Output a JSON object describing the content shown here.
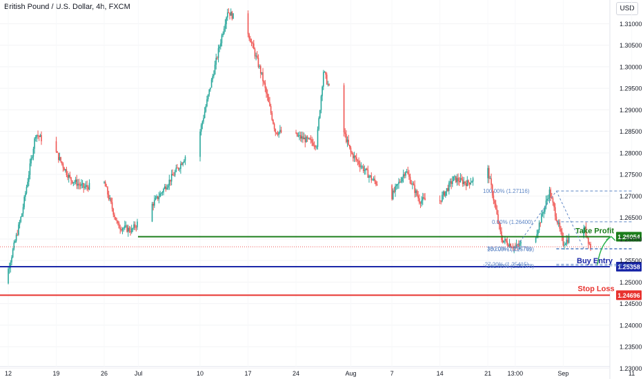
{
  "header": {
    "title": "British Pound / U.S. Dollar, 4h, FXCM",
    "currency": "USD"
  },
  "colors": {
    "up": "#26a69a",
    "down": "#ef5350",
    "take_profit": "#1b7d1b",
    "buy_entry": "#1a27a8",
    "stop_loss": "#e8322e",
    "fib": "#5b84c4"
  },
  "chart_data": {
    "type": "candlestick",
    "title": "British Pound / U.S. Dollar, 4h, FXCM",
    "ylim": [
      1.2275,
      1.3155
    ],
    "y_ticks": [
      "1.31000",
      "1.30500",
      "1.30000",
      "1.29500",
      "1.29000",
      "1.28500",
      "1.28000",
      "1.27500",
      "1.27000",
      "1.26500",
      "1.26000",
      "1.25500",
      "1.25000",
      "1.24500",
      "1.24000",
      "1.23500",
      "1.23000"
    ],
    "x_ticks": [
      {
        "label": "12",
        "date": "2023-06-12"
      },
      {
        "label": "19",
        "date": "2023-06-19"
      },
      {
        "label": "26",
        "date": "2023-06-26"
      },
      {
        "label": "Jul",
        "date": "2023-07-01"
      },
      {
        "label": "10",
        "date": "2023-07-10"
      },
      {
        "label": "17",
        "date": "2023-07-17"
      },
      {
        "label": "24",
        "date": "2023-07-24"
      },
      {
        "label": "Aug",
        "date": "2023-08-01"
      },
      {
        "label": "7",
        "date": "2023-08-07"
      },
      {
        "label": "14",
        "date": "2023-08-14"
      },
      {
        "label": "21",
        "date": "2023-08-21"
      },
      {
        "label": "13:00",
        "date": "2023-08-25"
      },
      {
        "label": "Sep",
        "date": "2023-09-01"
      },
      {
        "label": "11",
        "date": "2023-09-11"
      }
    ],
    "price_path": [
      {
        "date": "2023-06-09",
        "close": 1.249
      },
      {
        "date": "2023-06-12",
        "close": 1.253
      },
      {
        "date": "2023-06-14",
        "close": 1.266
      },
      {
        "date": "2023-06-16",
        "close": 1.2845
      },
      {
        "date": "2023-06-19",
        "close": 1.28
      },
      {
        "date": "2023-06-21",
        "close": 1.274
      },
      {
        "date": "2023-06-23",
        "close": 1.272
      },
      {
        "date": "2023-06-26",
        "close": 1.273
      },
      {
        "date": "2023-06-28",
        "close": 1.263
      },
      {
        "date": "2023-06-30",
        "close": 1.262
      },
      {
        "date": "2023-07-04",
        "close": 1.27
      },
      {
        "date": "2023-07-07",
        "close": 1.277
      },
      {
        "date": "2023-07-10",
        "close": 1.285
      },
      {
        "date": "2023-07-12",
        "close": 1.299
      },
      {
        "date": "2023-07-14",
        "close": 1.313
      },
      {
        "date": "2023-07-17",
        "close": 1.308
      },
      {
        "date": "2023-07-19",
        "close": 1.298
      },
      {
        "date": "2023-07-21",
        "close": 1.285
      },
      {
        "date": "2023-07-24",
        "close": 1.284
      },
      {
        "date": "2023-07-27",
        "close": 1.282
      },
      {
        "date": "2023-07-28",
        "close": 1.299
      },
      {
        "date": "2023-08-01",
        "close": 1.28
      },
      {
        "date": "2023-08-04",
        "close": 1.274
      },
      {
        "date": "2023-08-07",
        "close": 1.27
      },
      {
        "date": "2023-08-09",
        "close": 1.276
      },
      {
        "date": "2023-08-11",
        "close": 1.269
      },
      {
        "date": "2023-08-14",
        "close": 1.269
      },
      {
        "date": "2023-08-16",
        "close": 1.274
      },
      {
        "date": "2023-08-18",
        "close": 1.273
      },
      {
        "date": "2023-08-21",
        "close": 1.276
      },
      {
        "date": "2023-08-23",
        "close": 1.26
      },
      {
        "date": "2023-08-25",
        "close": 1.258
      },
      {
        "date": "2023-08-28",
        "close": 1.261
      },
      {
        "date": "2023-08-30",
        "close": 1.271
      },
      {
        "date": "2023-09-01",
        "close": 1.259
      },
      {
        "date": "2023-09-04",
        "close": 1.263
      },
      {
        "date": "2023-09-05",
        "close": 1.258
      }
    ],
    "horizontal_levels": [
      {
        "name": "Take Profit",
        "value": 1.26054,
        "label": "1.26054",
        "color": "#1b7d1b"
      },
      {
        "name": "Buy Entry",
        "value": 1.25358,
        "label": "1.25358",
        "color": "#1a27a8"
      },
      {
        "name": "Stop Loss",
        "value": 1.24696,
        "label": "1.24696",
        "color": "#e8322e"
      }
    ],
    "current_price": 1.2582,
    "fibonacci": {
      "start_date": "2023-08-31",
      "end_date": "2023-09-11",
      "levels": [
        {
          "text": "100.00% (1.27116)",
          "value": 1.27116
        },
        {
          "text": "0.00% (1.26400)",
          "value": 1.264
        },
        {
          "text": "38.20% (1.25779)",
          "value": 1.25779
        },
        {
          "text": "100.00% (1.25769)",
          "value": 1.25769
        },
        {
          "text": "-27.20% (1.25415)",
          "value": 1.25415
        },
        {
          "text": "161.80% (1.25378)",
          "value": 1.25378
        }
      ]
    }
  }
}
